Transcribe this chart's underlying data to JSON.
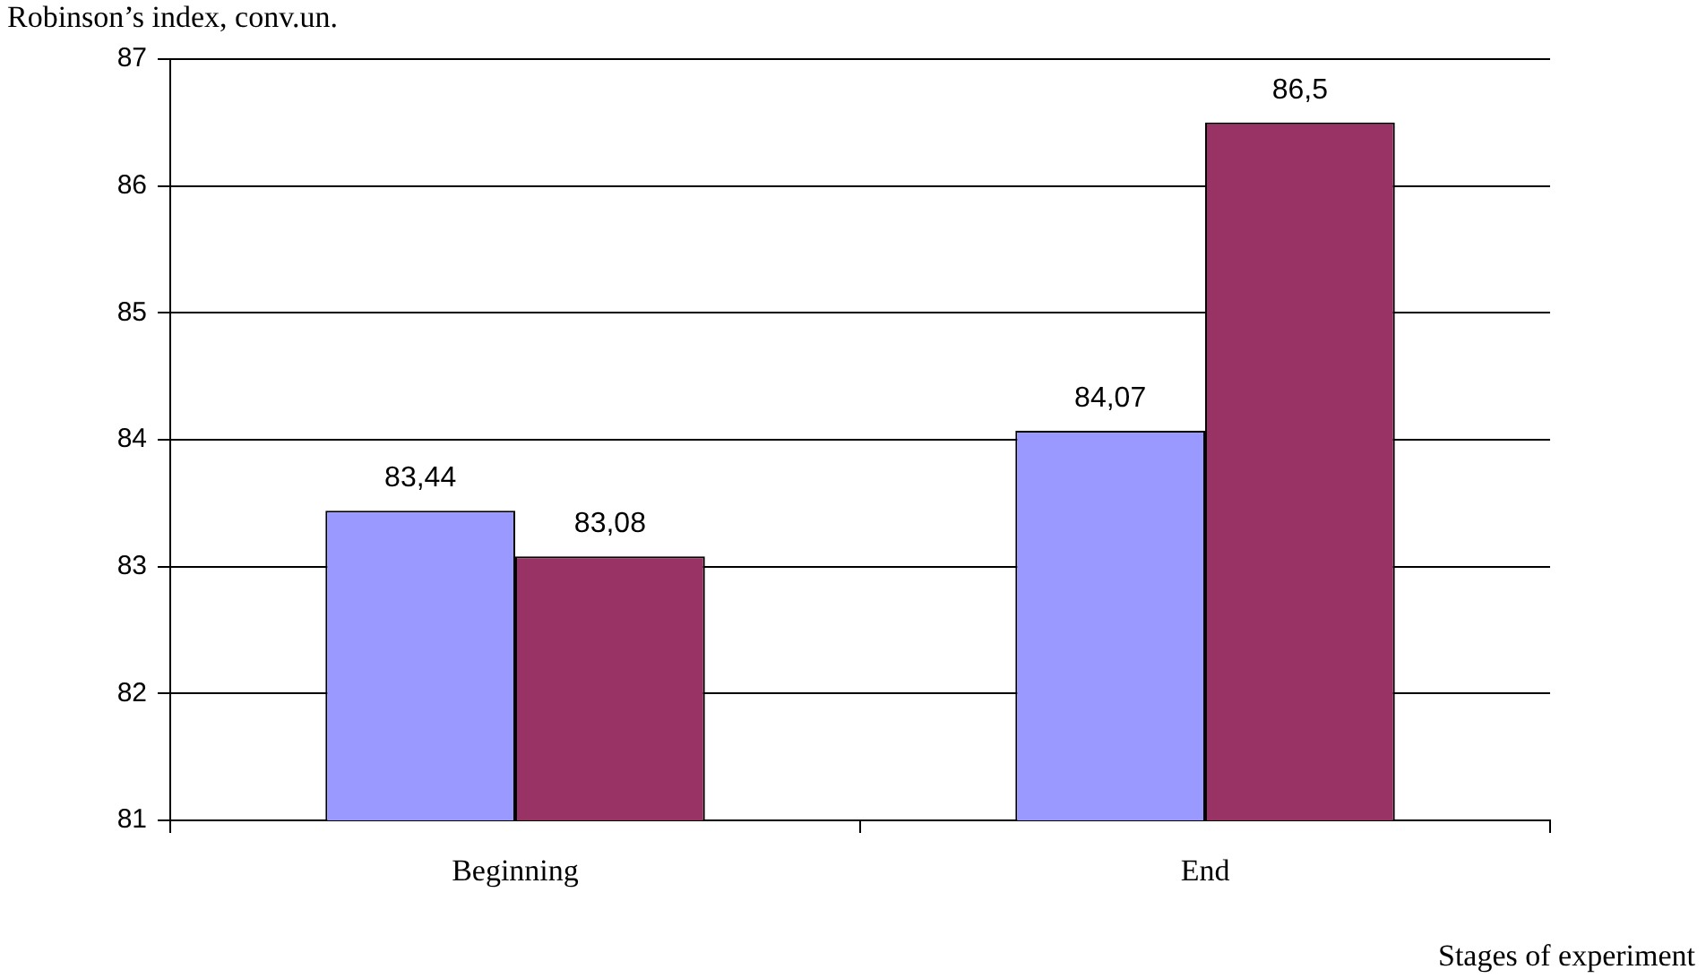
{
  "chart_data": {
    "type": "bar",
    "ylabel": "Robinson’s index, conv.un.",
    "xlabel": "Stages of experiment",
    "categories": [
      "Beginning",
      "End"
    ],
    "series": [
      {
        "color": "#9999ff",
        "values": [
          83.44,
          84.07
        ],
        "value_labels": [
          "83,44",
          "84,07"
        ]
      },
      {
        "color": "#993366",
        "values": [
          83.08,
          86.5
        ],
        "value_labels": [
          "83,08",
          "86,5"
        ]
      }
    ],
    "ylim": [
      81,
      87
    ],
    "yticks": [
      81,
      82,
      83,
      84,
      85,
      86,
      87
    ],
    "grid": "y",
    "legend": false
  }
}
